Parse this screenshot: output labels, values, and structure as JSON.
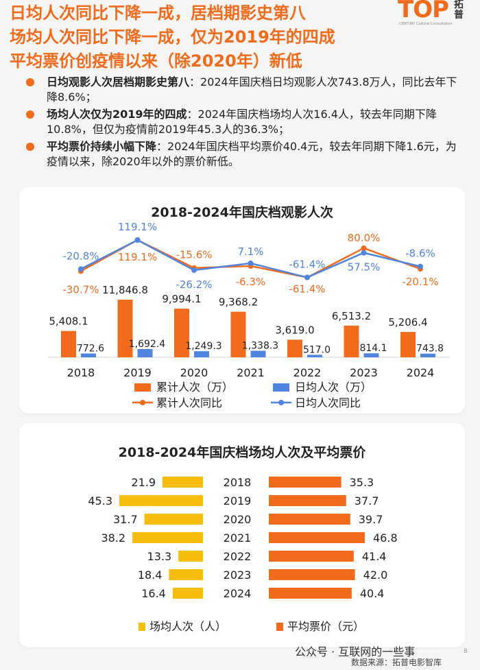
{
  "header": {
    "headline_lines": [
      "日均人次同比下降一成，居档期影史第八",
      "场均人次同比下降一成，仅为2019年的四成",
      "平均票价创疫情以来（除2020年）新低"
    ],
    "logo_text": "TOP",
    "logo_cn": "拓普",
    "logo_en": "CENTURY Cultural Consultation"
  },
  "bullets": [
    {
      "bold": "日均观影人次居档期影史第八",
      "text": "：2024年国庆档日均观影人次743.8万人，同比去年下降8.6%；"
    },
    {
      "bold": "场均人次仅为2019年的四成",
      "text": "：2024年国庆档场均人次16.4人，较去年同期下降10.8%，但仅为疫情前2019年45.3人的36.3%；"
    },
    {
      "bold": "平均票价持续小幅下降",
      "text": "：2024年国庆档平均票价40.4元，较去年同期下降1.6元，为疫情以来，除2020年以外的票价新低。"
    }
  ],
  "colors": {
    "orange": "#f26a1b",
    "blue": "#4f84e0",
    "yellow": "#f7bd0e",
    "accent": "#f26a1b"
  },
  "chart_data": [
    {
      "type": "bar",
      "title": "2018-2024年国庆档观影人次",
      "categories": [
        "2018",
        "2019",
        "2020",
        "2021",
        "2022",
        "2023",
        "2024"
      ],
      "series": [
        {
          "name": "累计人次（万）",
          "type": "bar",
          "values": [
            5408.1,
            11846.8,
            9994.1,
            9368.2,
            3619.0,
            6513.2,
            5206.4
          ],
          "labels": [
            "5,408.1",
            "11,846.8",
            "9,994.1",
            "9,368.2",
            "3,619.0",
            "6,513.2",
            "5,206.4"
          ]
        },
        {
          "name": "日均人次（万）",
          "type": "bar",
          "values": [
            772.6,
            1692.4,
            1249.3,
            1338.3,
            517.0,
            814.1,
            743.8
          ],
          "labels": [
            "772.6",
            "1,692.4",
            "1,249.3",
            "1,338.3",
            "517.0",
            "814.1",
            "743.8"
          ]
        },
        {
          "name": "累计人次同比",
          "type": "line",
          "values": [
            -30.7,
            119.1,
            -15.6,
            -6.3,
            -61.4,
            80.0,
            -20.1
          ],
          "labels": [
            "-30.7%",
            "119.1%",
            "-15.6%",
            "-6.3%",
            "-61.4%",
            "80.0%",
            "-20.1%"
          ]
        },
        {
          "name": "日均人次同比",
          "type": "line",
          "values": [
            -20.8,
            119.1,
            -26.2,
            7.1,
            -61.4,
            57.5,
            -8.6
          ],
          "labels": [
            "-20.8%",
            "119.1%",
            "-26.2%",
            "7.1%",
            "-61.4%",
            "57.5%",
            "-8.6%"
          ]
        }
      ]
    },
    {
      "type": "bar",
      "orientation": "horizontal",
      "title": "2018-2024年国庆档场均人次及平均票价",
      "categories": [
        "2018",
        "2019",
        "2020",
        "2021",
        "2022",
        "2023",
        "2024"
      ],
      "series": [
        {
          "name": "场均人次（人）",
          "values": [
            21.9,
            45.3,
            31.7,
            38.2,
            13.3,
            18.4,
            16.4
          ],
          "labels": [
            "21.9",
            "45.3",
            "31.7",
            "38.2",
            "13.3",
            "18.4",
            "16.4"
          ]
        },
        {
          "name": "平均票价（元）",
          "values": [
            35.3,
            37.7,
            39.7,
            46.8,
            41.4,
            42.0,
            40.4
          ],
          "labels": [
            "35.3",
            "37.7",
            "39.7",
            "46.8",
            "41.4",
            "42.0",
            "40.4"
          ]
        }
      ]
    }
  ],
  "footer": {
    "wechat": "公众号 · 互联网的一些事",
    "source": "数据来源：拓普电影智库",
    "page": "8"
  }
}
